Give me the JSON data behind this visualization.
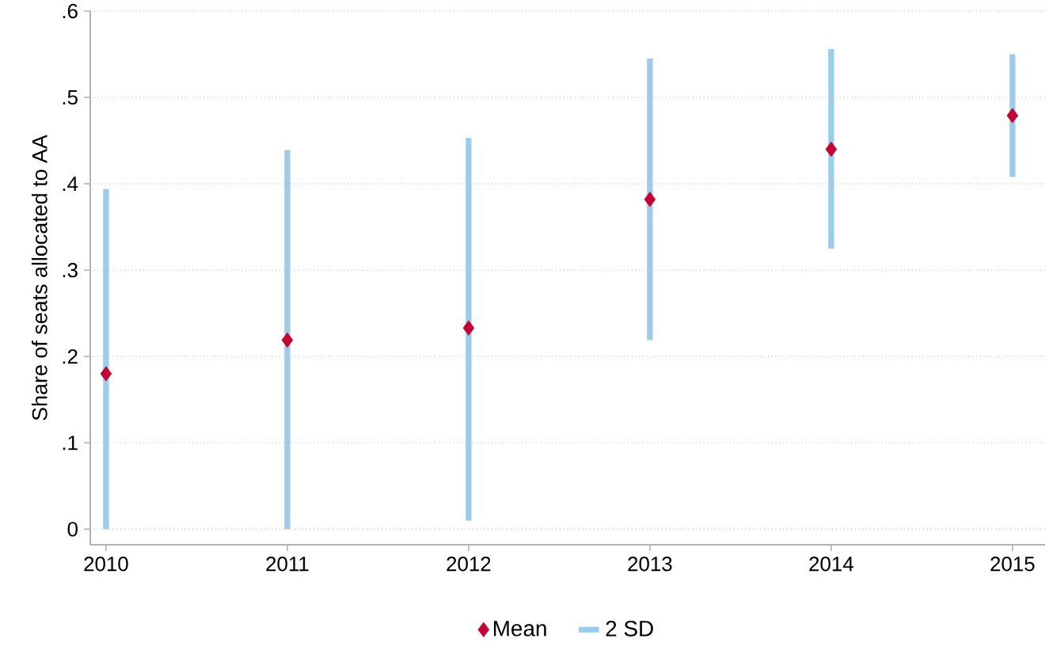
{
  "chart_data": {
    "type": "scatter",
    "ylabel": "Share of seats allocated to AA",
    "categories": [
      "2010",
      "2011",
      "2012",
      "2013",
      "2014",
      "2015"
    ],
    "series": [
      {
        "name": "Mean",
        "color": "#c10534",
        "marker": "diamond",
        "values": [
          0.18,
          0.219,
          0.233,
          0.382,
          0.44,
          0.479
        ]
      },
      {
        "name": "2 SD",
        "type": "bar",
        "color": "#9ccbec",
        "base": [
          0,
          0,
          0.01,
          0.219,
          0.325,
          0.408
        ],
        "values": [
          0.394,
          0.439,
          0.443,
          0.326,
          0.231,
          0.142
        ]
      }
    ],
    "ylim": [
      0,
      0.6
    ],
    "yticks": [
      {
        "value": 0,
        "label": "0"
      },
      {
        "value": 0.1,
        "label": ".1"
      },
      {
        "value": 0.2,
        "label": ".2"
      },
      {
        "value": 0.3,
        "label": ".3"
      },
      {
        "value": 0.4,
        "label": ".4"
      },
      {
        "value": 0.5,
        "label": ".5"
      },
      {
        "value": 0.6,
        "label": ".6"
      }
    ],
    "grid": "y",
    "legend": "bottom"
  }
}
